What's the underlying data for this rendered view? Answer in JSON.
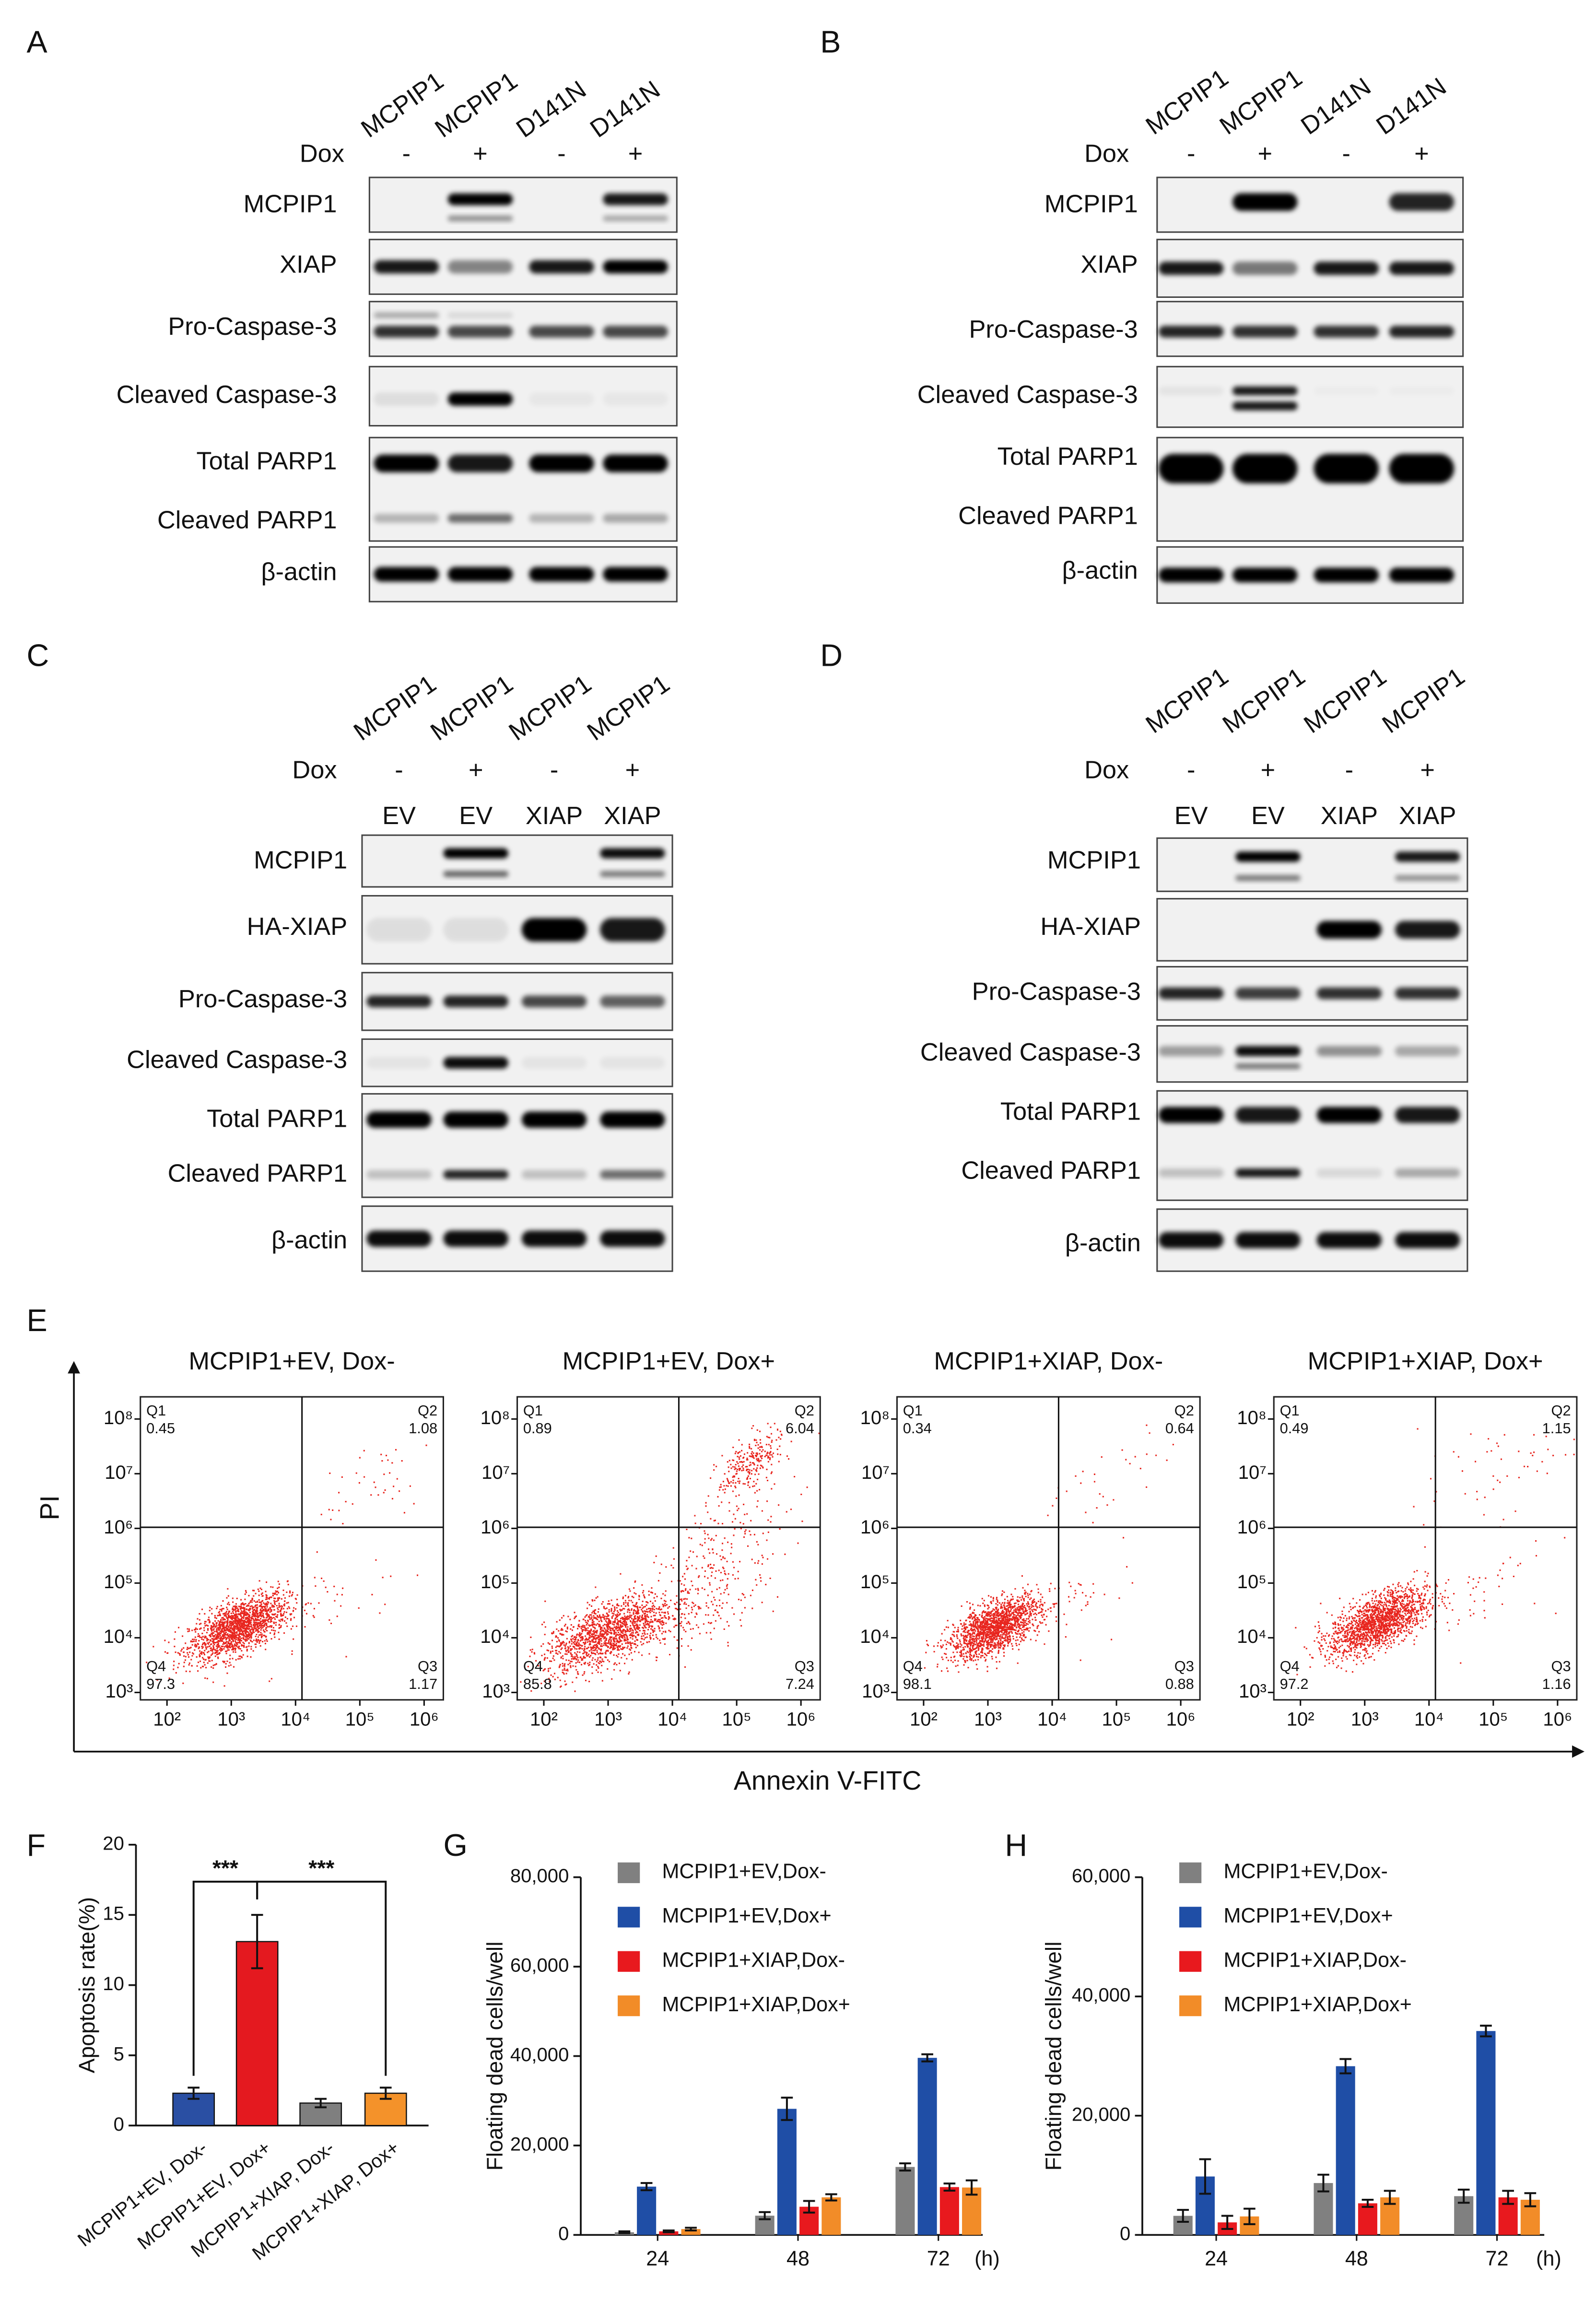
{
  "figure": {
    "blots": [
      {
        "panel_label": "A",
        "lanes": [
          "MCPIP1",
          "MCPIP1",
          "D141N",
          "D141N"
        ],
        "dox_label": "Dox",
        "dox": [
          "-",
          "+",
          "-",
          "+"
        ],
        "rows": [
          "MCPIP1",
          "XIAP",
          "Pro-Caspase-3",
          "Cleaved Caspase-3",
          "Total PARP1",
          "Cleaved PARP1",
          "β-actin"
        ]
      },
      {
        "panel_label": "B",
        "lanes": [
          "MCPIP1",
          "MCPIP1",
          "D141N",
          "D141N"
        ],
        "dox_label": "Dox",
        "dox": [
          "-",
          "+",
          "-",
          "+"
        ],
        "rows": [
          "MCPIP1",
          "XIAP",
          "Pro-Caspase-3",
          "Cleaved Caspase-3",
          "Total PARP1",
          "Cleaved PARP1",
          "β-actin"
        ]
      },
      {
        "panel_label": "C",
        "lanes": [
          "MCPIP1",
          "MCPIP1",
          "MCPIP1",
          "MCPIP1"
        ],
        "dox_label": "Dox",
        "dox": [
          "-",
          "+",
          "-",
          "+"
        ],
        "vectors": [
          "EV",
          "EV",
          "XIAP",
          "XIAP"
        ],
        "rows": [
          "MCPIP1",
          "HA-XIAP",
          "Pro-Caspase-3",
          "Cleaved Caspase-3",
          "Total PARP1",
          "Cleaved PARP1",
          "β-actin"
        ]
      },
      {
        "panel_label": "D",
        "lanes": [
          "MCPIP1",
          "MCPIP1",
          "MCPIP1",
          "MCPIP1"
        ],
        "dox_label": "Dox",
        "dox": [
          "-",
          "+",
          "-",
          "+"
        ],
        "vectors": [
          "EV",
          "EV",
          "XIAP",
          "XIAP"
        ],
        "rows": [
          "MCPIP1",
          "HA-XIAP",
          "Pro-Caspase-3",
          "Cleaved Caspase-3",
          "Total PARP1",
          "Cleaved PARP1",
          "β-actin"
        ]
      }
    ],
    "flow": {
      "panel_label": "E",
      "y_label": "PI",
      "x_label": "Annexin V-FITC",
      "xticks": [
        {
          "value": 100,
          "label": "10²"
        },
        {
          "value": 1000,
          "label": "10³"
        },
        {
          "value": 10000,
          "label": "10⁴"
        },
        {
          "value": 100000,
          "label": "10⁵"
        },
        {
          "value": 1000000,
          "label": "10⁶"
        }
      ],
      "yticks": [
        {
          "value": 1000,
          "label": "10³"
        },
        {
          "value": 10000,
          "label": "10⁴"
        },
        {
          "value": 100000,
          "label": "10⁵"
        },
        {
          "value": 1000000,
          "label": "10⁶"
        },
        {
          "value": 10000000,
          "label": "10⁷"
        },
        {
          "value": 100000000,
          "label": "10⁸"
        }
      ],
      "plots": [
        {
          "title": "MCPIP1+EV, Dox-",
          "quadrants": [
            {
              "name": "Q1",
              "value": 0.45
            },
            {
              "name": "Q2",
              "value": 1.08
            },
            {
              "name": "Q3",
              "value": 1.17
            },
            {
              "name": "Q4",
              "value": 97.3
            }
          ]
        },
        {
          "title": "MCPIP1+EV, Dox+",
          "quadrants": [
            {
              "name": "Q1",
              "value": 0.89
            },
            {
              "name": "Q2",
              "value": 6.04
            },
            {
              "name": "Q3",
              "value": 7.24
            },
            {
              "name": "Q4",
              "value": 85.8
            }
          ]
        },
        {
          "title": "MCPIP1+XIAP, Dox-",
          "quadrants": [
            {
              "name": "Q1",
              "value": 0.34
            },
            {
              "name": "Q2",
              "value": 0.64
            },
            {
              "name": "Q3",
              "value": 0.88
            },
            {
              "name": "Q4",
              "value": 98.1
            }
          ]
        },
        {
          "title": "MCPIP1+XIAP, Dox+",
          "quadrants": [
            {
              "name": "Q1",
              "value": 0.49
            },
            {
              "name": "Q2",
              "value": 1.15
            },
            {
              "name": "Q3",
              "value": 1.16
            },
            {
              "name": "Q4",
              "value": 97.2
            }
          ]
        }
      ]
    }
  },
  "chart_data": [
    {
      "type": "bar",
      "panel_label": "F",
      "y_label": "Apoptosis rate(%)",
      "categories": [
        "MCPIP1+EV, Dox-",
        "MCPIP1+EV, Dox+",
        "MCPIP1+XIAP, Dox-",
        "MCPIP1+XIAP, Dox+"
      ],
      "values": [
        2.3,
        13.1,
        1.6,
        2.3
      ],
      "errors": [
        0.4,
        1.9,
        0.3,
        0.4
      ],
      "colors": [
        "#2a4fa3",
        "#e4191f",
        "#7f7f7f",
        "#f4922a"
      ],
      "ylim": [
        0,
        20
      ],
      "yticks": [
        0,
        5,
        10,
        15,
        20
      ],
      "annotations": [
        "***",
        "***"
      ]
    },
    {
      "type": "grouped_bar",
      "panel_label": "G",
      "y_label": "Floating dead cells/well",
      "x_unit": "(h)",
      "categories": [
        "24",
        "48",
        "72"
      ],
      "series": [
        {
          "name": "MCPIP1+EV,Dox-",
          "color": "#808080",
          "values": [
            600,
            4300,
            15200
          ],
          "errors": [
            200,
            800,
            800
          ]
        },
        {
          "name": "MCPIP1+EV,Dox+",
          "color": "#1f4ea6",
          "values": [
            10800,
            28200,
            39600
          ],
          "errors": [
            800,
            2500,
            800
          ]
        },
        {
          "name": "MCPIP1+XIAP,Dox-",
          "color": "#e8191e",
          "values": [
            800,
            6300,
            10700
          ],
          "errors": [
            200,
            1300,
            800
          ]
        },
        {
          "name": "MCPIP1+XIAP,Dox+",
          "color": "#f28c28",
          "values": [
            1300,
            8400,
            10600
          ],
          "errors": [
            300,
            700,
            1600
          ]
        }
      ],
      "ylim": [
        0,
        80000
      ],
      "yticks": [
        0,
        {
          "value": 20000,
          "label": "20,000"
        },
        {
          "value": 40000,
          "label": "40,000"
        },
        {
          "value": 60000,
          "label": "60,000"
        },
        {
          "value": 80000,
          "label": "80,000"
        }
      ]
    },
    {
      "type": "grouped_bar",
      "panel_label": "H",
      "y_label": "Floating dead cells/well",
      "x_unit": "(h)",
      "categories": [
        "24",
        "48",
        "72"
      ],
      "series": [
        {
          "name": "MCPIP1+EV,Dox-",
          "color": "#808080",
          "values": [
            3200,
            8700,
            6500
          ],
          "errors": [
            1000,
            1400,
            1100
          ]
        },
        {
          "name": "MCPIP1+EV,Dox+",
          "color": "#1f4ea6",
          "values": [
            9800,
            28300,
            34200
          ],
          "errors": [
            2900,
            1200,
            900
          ]
        },
        {
          "name": "MCPIP1+XIAP,Dox-",
          "color": "#e8191e",
          "values": [
            2100,
            5300,
            6300
          ],
          "errors": [
            1100,
            600,
            1100
          ]
        },
        {
          "name": "MCPIP1+XIAP,Dox+",
          "color": "#f28c28",
          "values": [
            3100,
            6300,
            5900
          ],
          "errors": [
            1300,
            1100,
            1100
          ]
        }
      ],
      "ylim": [
        0,
        60000
      ],
      "yticks": [
        0,
        {
          "value": 20000,
          "label": "20,000"
        },
        {
          "value": 40000,
          "label": "40,000"
        },
        {
          "value": 60000,
          "label": "60,000"
        }
      ]
    }
  ]
}
